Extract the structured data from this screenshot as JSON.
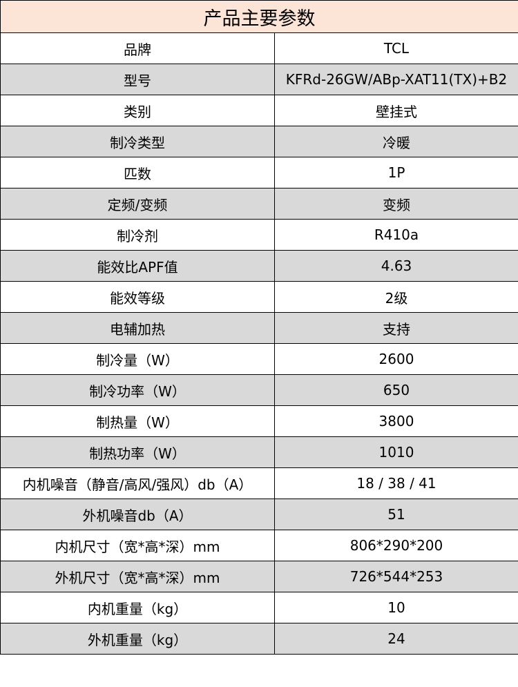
{
  "title": "产品主要参数",
  "colors": {
    "header_bg": "#FCE4D6",
    "shaded_row_bg": "#D9D9D9"
  },
  "rows": [
    {
      "label": "品牌",
      "value": "TCL"
    },
    {
      "label": "型号",
      "value": "KFRd-26GW/ABp-XAT11(TX)+B2"
    },
    {
      "label": "类别",
      "value": "壁挂式"
    },
    {
      "label": "制冷类型",
      "value": "冷暖"
    },
    {
      "label": "匹数",
      "value": "1P"
    },
    {
      "label": "定频/变频",
      "value": "变频"
    },
    {
      "label": "制冷剂",
      "value": "R410a"
    },
    {
      "label": "能效比APF值",
      "value": "4.63"
    },
    {
      "label": "能效等级",
      "value": "2级"
    },
    {
      "label": "电辅加热",
      "value": "支持"
    },
    {
      "label": "制冷量（W）",
      "value": "2600"
    },
    {
      "label": "制冷功率（W）",
      "value": "650"
    },
    {
      "label": "制热量（W）",
      "value": "3800"
    },
    {
      "label": "制热功率（W）",
      "value": "1010"
    },
    {
      "label": "内机噪音（静音/高风/强风）db（A）",
      "value": "18 / 38 / 41"
    },
    {
      "label": "外机噪音db（A）",
      "value": "51"
    },
    {
      "label": "内机尺寸（宽*高*深）mm",
      "value": "806*290*200"
    },
    {
      "label": "外机尺寸（宽*高*深）mm",
      "value": "726*544*253"
    },
    {
      "label": "内机重量（kg）",
      "value": "10"
    },
    {
      "label": "外机重量（kg）",
      "value": "24"
    }
  ]
}
